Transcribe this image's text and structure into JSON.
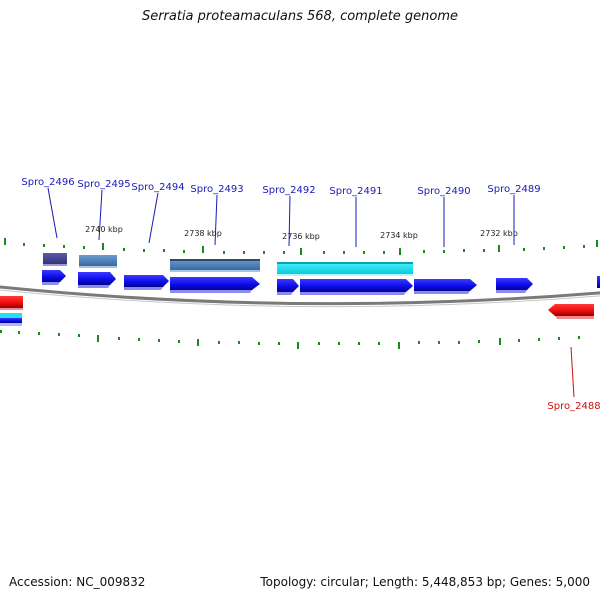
{
  "title": "Serratia proteamaculans 568, complete genome",
  "accession_label": "Accession: NC_009832",
  "summary_label": "Topology: circular; Length: 5,448,853 bp; Genes: 5,000",
  "kbp_labels": [
    {
      "text": "2740 kbp"
    },
    {
      "text": "2738 kbp"
    },
    {
      "text": "2736 kbp"
    },
    {
      "text": "2734 kbp"
    },
    {
      "text": "2732 kbp"
    }
  ],
  "gene_labels": [
    {
      "text": "Spro_2496",
      "color": "#1a1ab8"
    },
    {
      "text": "Spro_2495",
      "color": "#1a1ab8"
    },
    {
      "text": "Spro_2494",
      "color": "#1a1ab8"
    },
    {
      "text": "Spro_2493",
      "color": "#1a1ab8"
    },
    {
      "text": "Spro_2492",
      "color": "#1a1ab8"
    },
    {
      "text": "Spro_2491",
      "color": "#1a1ab8"
    },
    {
      "text": "Spro_2490",
      "color": "#1a1ab8"
    },
    {
      "text": "Spro_2489",
      "color": "#1a1ab8"
    },
    {
      "text": "Spro_2488",
      "color": "#cc1111"
    }
  ],
  "colors": {
    "forward_gene": "#1010e0",
    "reverse_gene": "#ee1010",
    "backbone": "#8a8a8a",
    "tick": "#1a8a1a",
    "feature_purple": "#4a4a9a",
    "feature_steel": "#4e84b8",
    "feature_cyan": "#22e0ee"
  }
}
